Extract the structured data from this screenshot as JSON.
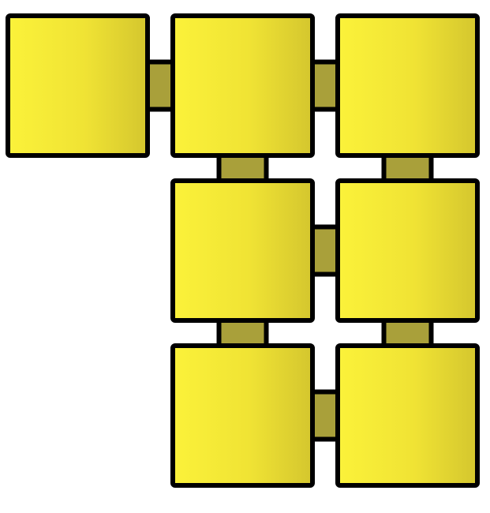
{
  "puzzle": {
    "colors": {
      "tile_fill_light": "#fbf23a",
      "tile_fill_mid": "#f0e334",
      "tile_fill_dark": "#d4c62e",
      "tile_border": "#000000",
      "connector_fill": "#a9a03a",
      "background": "#ffffff"
    },
    "grid": {
      "rows": 3,
      "cols": 3
    },
    "tiles": [
      {
        "row": 0,
        "col": 0
      },
      {
        "row": 0,
        "col": 1
      },
      {
        "row": 0,
        "col": 2
      },
      {
        "row": 1,
        "col": 1
      },
      {
        "row": 1,
        "col": 2
      },
      {
        "row": 2,
        "col": 1
      },
      {
        "row": 2,
        "col": 2
      }
    ],
    "connections": [
      {
        "from": [
          0,
          0
        ],
        "to": [
          0,
          1
        ]
      },
      {
        "from": [
          0,
          1
        ],
        "to": [
          0,
          2
        ]
      },
      {
        "from": [
          0,
          1
        ],
        "to": [
          1,
          1
        ]
      },
      {
        "from": [
          0,
          2
        ],
        "to": [
          1,
          2
        ]
      },
      {
        "from": [
          1,
          1
        ],
        "to": [
          1,
          2
        ]
      },
      {
        "from": [
          1,
          1
        ],
        "to": [
          2,
          1
        ]
      },
      {
        "from": [
          1,
          2
        ],
        "to": [
          2,
          2
        ]
      },
      {
        "from": [
          2,
          1
        ],
        "to": [
          2,
          2
        ]
      }
    ]
  }
}
